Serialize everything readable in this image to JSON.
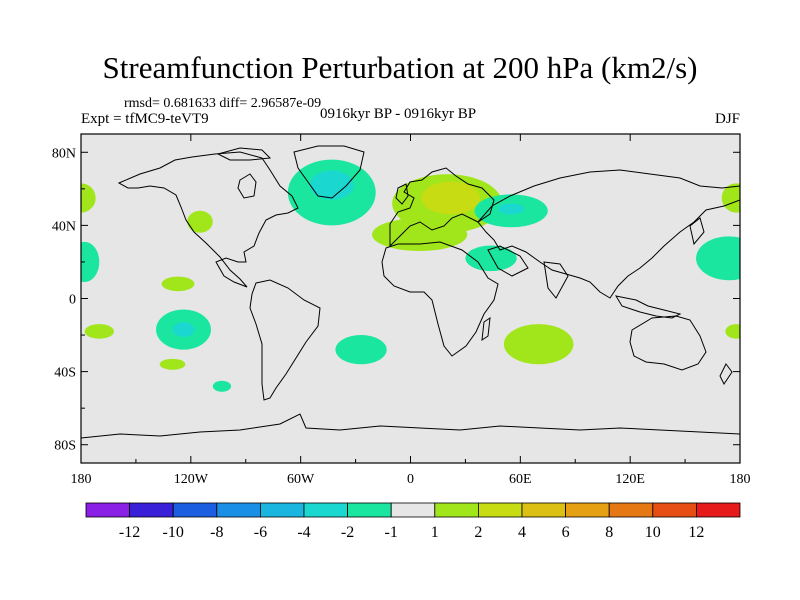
{
  "chart_data": {
    "type": "heatmap",
    "title": "Streamfunction Perturbation at 200 hPa (km2/s)",
    "stats_line": "rmsd= 0.681633 diff= 2.96587e-09",
    "experiment_label": "Expt = tfMC9-teVT9",
    "period_label": "0916kyr BP - 0916kyr BP",
    "season_label": "DJF",
    "map": {
      "projection": "cylindrical-equidistant",
      "lon_range": [
        -180,
        180
      ],
      "lat_range": [
        -90,
        90
      ]
    },
    "x_ticks": [
      {
        "lon": -180,
        "label": "180"
      },
      {
        "lon": -120,
        "label": "120W"
      },
      {
        "lon": -60,
        "label": "60W"
      },
      {
        "lon": 0,
        "label": "0"
      },
      {
        "lon": 60,
        "label": "60E"
      },
      {
        "lon": 120,
        "label": "120E"
      },
      {
        "lon": 180,
        "label": "180"
      }
    ],
    "y_ticks": [
      {
        "lat": 80,
        "label": "80N"
      },
      {
        "lat": 40,
        "label": "40N"
      },
      {
        "lat": 0,
        "label": "0"
      },
      {
        "lat": -40,
        "label": "40S"
      },
      {
        "lat": -80,
        "label": "80S"
      }
    ],
    "colorbar": {
      "colors": [
        "#8a1fe6",
        "#3a1fd8",
        "#1c5ee0",
        "#1a8fe6",
        "#1ab6e0",
        "#1ad8d0",
        "#1ae6a0",
        "#e6e6e6",
        "#a0e61a",
        "#c8dc14",
        "#dcc014",
        "#e6a014",
        "#e67814",
        "#e64e14",
        "#e61a1a"
      ],
      "labels": [
        "-12",
        "-10",
        "-8",
        "-6",
        "-4",
        "-2",
        "-1",
        "1",
        "2",
        "4",
        "6",
        "8",
        "10",
        "12"
      ]
    },
    "anomalies": [
      {
        "lon": -43,
        "lat": 58,
        "rlon": 24,
        "rlat": 18,
        "level": -2
      },
      {
        "lon": -43,
        "lat": 62,
        "rlon": 12,
        "rlat": 8,
        "level": -4
      },
      {
        "lon": 20,
        "lat": 52,
        "rlon": 30,
        "rlat": 16,
        "level": 2
      },
      {
        "lon": 5,
        "lat": 35,
        "rlon": 26,
        "rlat": 9,
        "level": 2
      },
      {
        "lon": 22,
        "lat": 55,
        "rlon": 16,
        "rlat": 9,
        "level": 4
      },
      {
        "lon": 55,
        "lat": 48,
        "rlon": 20,
        "rlat": 9,
        "level": -2
      },
      {
        "lon": 55,
        "lat": 49,
        "rlon": 7,
        "rlat": 3,
        "level": -4
      },
      {
        "lon": 44,
        "lat": 22,
        "rlon": 14,
        "rlat": 7,
        "level": -2
      },
      {
        "lon": 174,
        "lat": 22,
        "rlon": 18,
        "rlat": 12,
        "level": -2
      },
      {
        "lon": -178,
        "lat": 20,
        "rlon": 8,
        "rlat": 11,
        "level": -2
      },
      {
        "lon": -180,
        "lat": 55,
        "rlon": 8,
        "rlat": 8,
        "level": 2
      },
      {
        "lon": 178,
        "lat": 55,
        "rlon": 8,
        "rlat": 8,
        "level": 2
      },
      {
        "lon": -115,
        "lat": 42,
        "rlon": 7,
        "rlat": 6,
        "level": 2
      },
      {
        "lon": -127,
        "lat": 8,
        "rlon": 9,
        "rlat": 4,
        "level": 2
      },
      {
        "lon": -124,
        "lat": -17,
        "rlon": 15,
        "rlat": 11,
        "level": -2
      },
      {
        "lon": -124,
        "lat": -17,
        "rlon": 6,
        "rlat": 4,
        "level": -4
      },
      {
        "lon": -130,
        "lat": -36,
        "rlon": 7,
        "rlat": 3,
        "level": 2
      },
      {
        "lon": -103,
        "lat": -48,
        "rlon": 5,
        "rlat": 3,
        "level": -2
      },
      {
        "lon": -170,
        "lat": -18,
        "rlon": 8,
        "rlat": 4,
        "level": 2
      },
      {
        "lon": 178,
        "lat": -18,
        "rlon": 6,
        "rlat": 4,
        "level": 2
      },
      {
        "lon": -27,
        "lat": -28,
        "rlon": 14,
        "rlat": 8,
        "level": -2
      },
      {
        "lon": 70,
        "lat": -25,
        "rlon": 19,
        "rlat": 11,
        "level": 2
      }
    ]
  }
}
